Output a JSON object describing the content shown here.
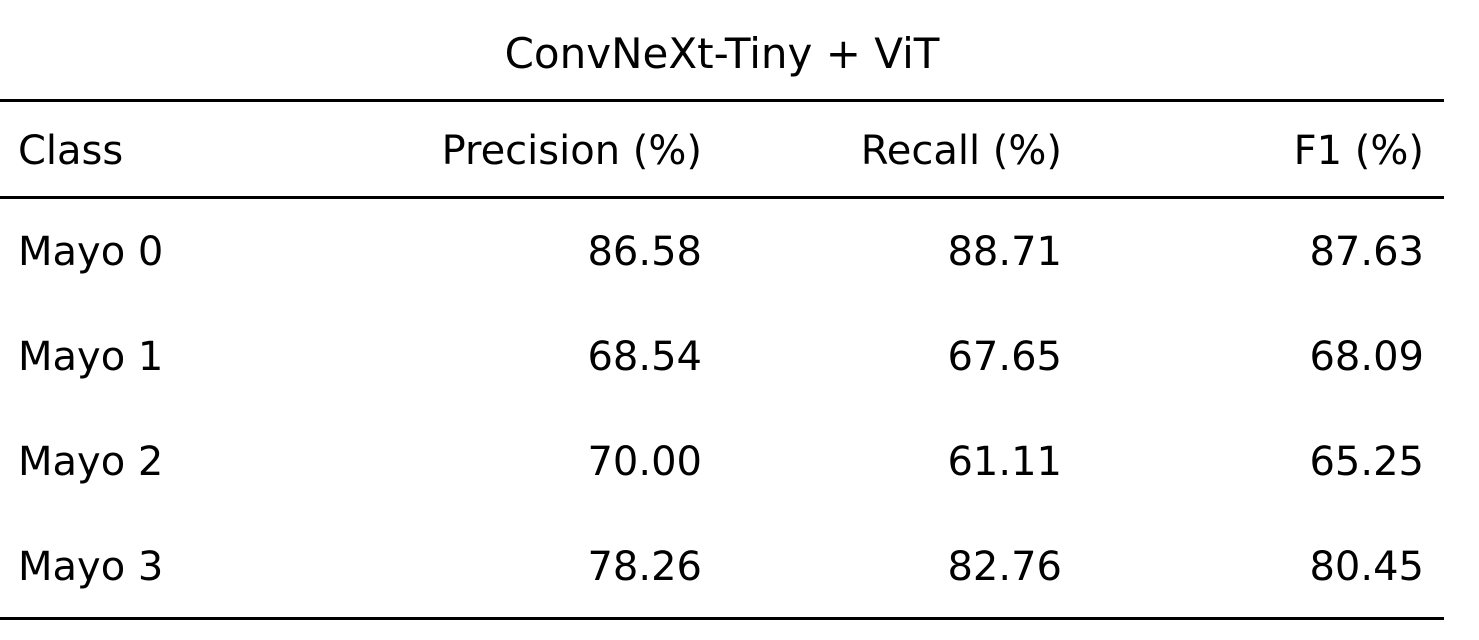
{
  "table": {
    "caption": "ConvNeXt-Tiny + ViT",
    "headers": [
      "Class",
      "Precision (%)",
      "Recall (%)",
      "F1 (%)"
    ],
    "rows": [
      [
        "Mayo 0",
        "86.58",
        "88.71",
        "87.63"
      ],
      [
        "Mayo 1",
        "68.54",
        "67.65",
        "68.09"
      ],
      [
        "Mayo 2",
        "70.00",
        "61.11",
        "65.25"
      ],
      [
        "Mayo 3",
        "78.26",
        "82.76",
        "80.45"
      ]
    ]
  }
}
